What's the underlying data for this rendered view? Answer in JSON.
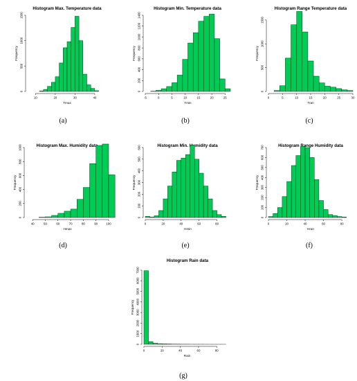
{
  "chart_data": [
    {
      "panel": "a",
      "caption": "(a)",
      "type": "bar",
      "title": "Histogram Max. Temperature data",
      "xlabel": "Tmax",
      "ylabel": "Frequency",
      "xlim": [
        6,
        46
      ],
      "ylim": [
        0,
        1500
      ],
      "xticks": [
        10,
        20,
        30,
        40
      ],
      "yticks": [
        0,
        500,
        1000,
        1500
      ],
      "bin_start": 12,
      "bin_width": 2,
      "values": [
        10,
        40,
        100,
        180,
        290,
        560,
        860,
        980,
        1260,
        1480,
        1000,
        340,
        130,
        60,
        15
      ]
    },
    {
      "panel": "b",
      "caption": "(b)",
      "type": "bar",
      "title": "Histogram Min. Temperature data",
      "xlabel": "Tmin",
      "ylabel": "Frequency",
      "xlim": [
        -5,
        27
      ],
      "ylim": [
        0,
        1400
      ],
      "xticks": [
        -5,
        0,
        5,
        10,
        15,
        20,
        25
      ],
      "yticks": [
        0,
        200,
        400,
        600,
        800,
        1000,
        1200,
        1400
      ],
      "bin_start": -3,
      "bin_width": 2,
      "values": [
        5,
        20,
        50,
        90,
        160,
        300,
        590,
        890,
        1080,
        1290,
        1380,
        1420,
        970,
        230,
        50
      ]
    },
    {
      "panel": "c",
      "caption": "(c)",
      "type": "bar",
      "title": "Histogram Range Temperature data",
      "xlabel": "Tran",
      "ylabel": "Frequency",
      "xlim": [
        0,
        30
      ],
      "ylim": [
        0,
        1600
      ],
      "xticks": [
        0,
        5,
        10,
        15,
        20,
        25,
        30
      ],
      "yticks": [
        0,
        500,
        1000,
        1500
      ],
      "bin_start": 2,
      "bin_width": 2,
      "values": [
        20,
        120,
        700,
        1400,
        1700,
        1250,
        640,
        320,
        180,
        110,
        90,
        60,
        35,
        20
      ]
    },
    {
      "panel": "d",
      "caption": "(d)",
      "type": "bar",
      "title": "Histogram Max. Humidity data",
      "xlabel": "Hmax",
      "ylabel": "Frequency",
      "xlim": [
        35,
        100
      ],
      "ylim": [
        0,
        1000
      ],
      "xticks": [
        40,
        50,
        60,
        70,
        80,
        90,
        100
      ],
      "yticks": [
        0,
        200,
        400,
        600,
        800,
        1000
      ],
      "bin_start": 35,
      "bin_width": 5,
      "values": [
        0,
        0,
        5,
        10,
        30,
        60,
        90,
        120,
        260,
        430,
        770,
        1030,
        1060,
        610
      ]
    },
    {
      "panel": "e",
      "caption": "(e)",
      "type": "bar",
      "title": "Histogram Min. Humidity data",
      "xlabel": "Hmin",
      "ylabel": "Frequency",
      "xlim": [
        0,
        95
      ],
      "ylim": [
        0,
        600
      ],
      "xticks": [
        0,
        20,
        40,
        60,
        80
      ],
      "yticks": [
        0,
        100,
        200,
        300,
        400,
        500,
        600
      ],
      "bin_start": 0,
      "bin_width": 5,
      "values": [
        10,
        5,
        15,
        60,
        160,
        270,
        390,
        490,
        510,
        540,
        620,
        500,
        380,
        270,
        160,
        60,
        25,
        10
      ]
    },
    {
      "panel": "f",
      "caption": "(f)",
      "type": "bar",
      "title": "Histogram Range Humidity data",
      "xlabel": "Hran",
      "ylabel": "Frequency",
      "xlim": [
        0,
        92
      ],
      "ylim": [
        0,
        700
      ],
      "xticks": [
        0,
        20,
        40,
        60,
        80
      ],
      "yticks": [
        0,
        100,
        200,
        300,
        400,
        500,
        600,
        700
      ],
      "bin_start": 0,
      "bin_width": 5,
      "values": [
        10,
        40,
        100,
        210,
        360,
        520,
        620,
        710,
        700,
        600,
        380,
        170,
        80,
        30,
        20,
        10,
        5,
        0
      ]
    },
    {
      "panel": "g",
      "caption": "(g)",
      "type": "bar",
      "title": "Histogram Rain data",
      "xlabel": "Rain",
      "ylabel": "Frequency",
      "xlim": [
        0,
        95
      ],
      "ylim": [
        0,
        7000
      ],
      "xticks": [
        0,
        20,
        40,
        60,
        80
      ],
      "yticks": [
        0,
        1000,
        2000,
        3000,
        4000,
        5000,
        6000,
        7000
      ],
      "bin_start": 0,
      "bin_width": 5,
      "values": [
        6950,
        250,
        100,
        60,
        40,
        30,
        20,
        15,
        10,
        10,
        5,
        5,
        5,
        3,
        2,
        2,
        1,
        1
      ]
    }
  ]
}
